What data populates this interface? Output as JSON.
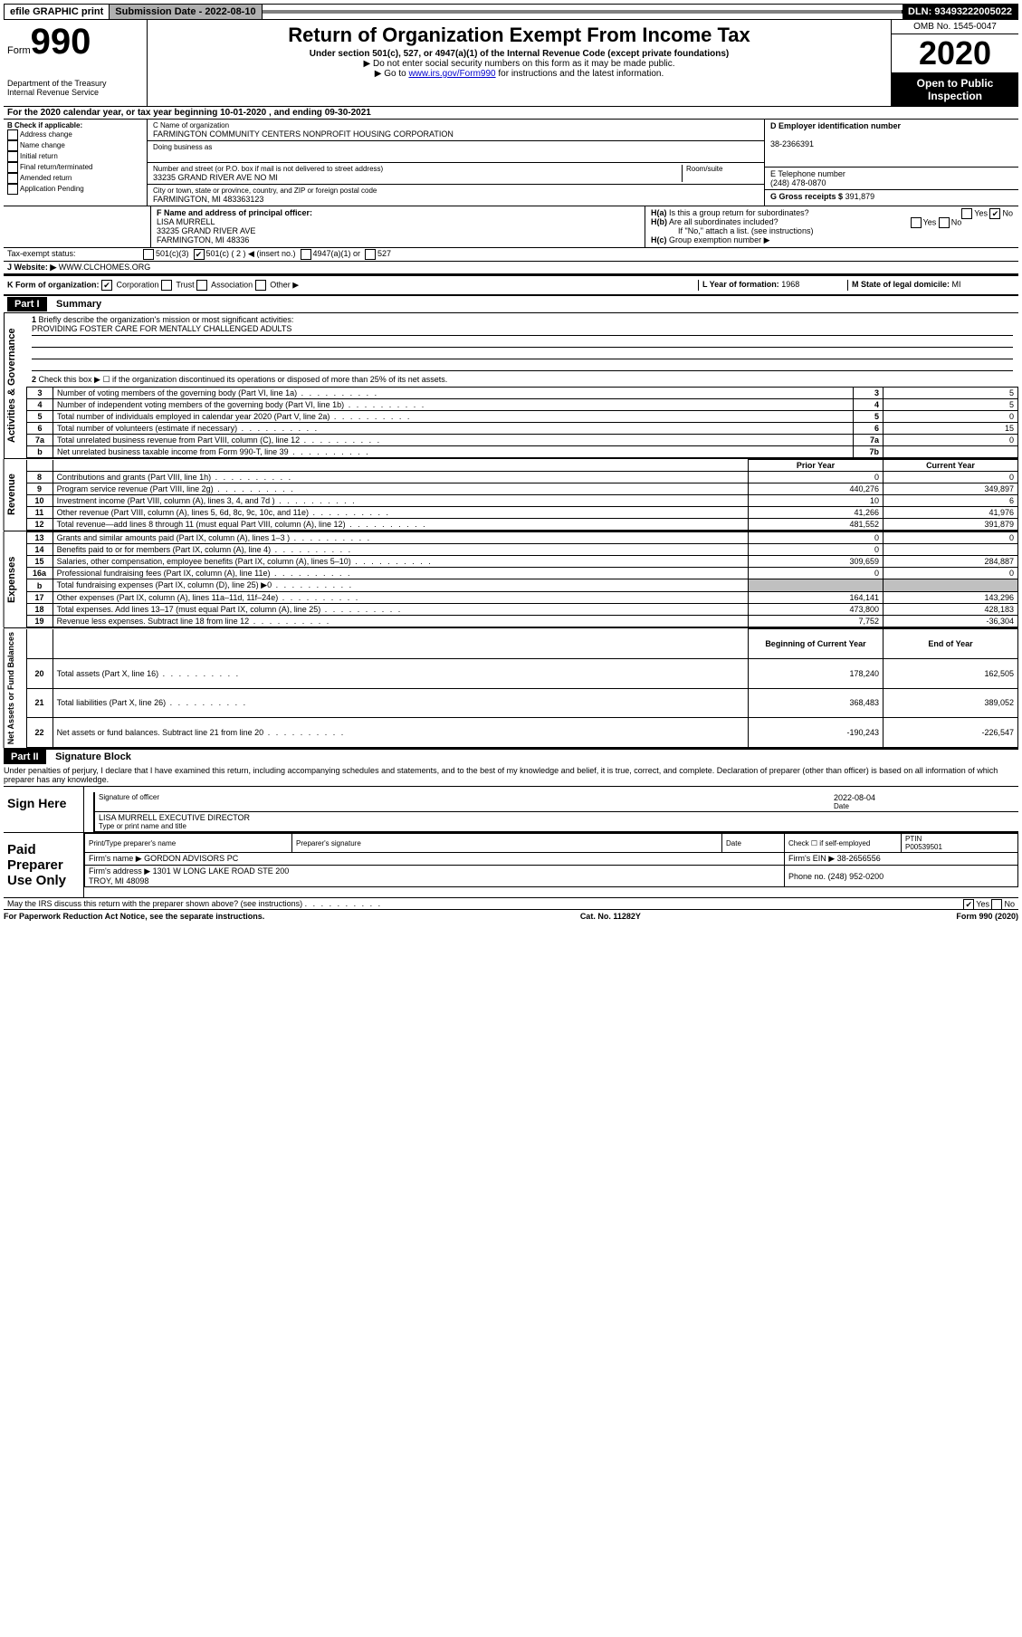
{
  "topbar": {
    "efile": "efile GRAPHIC print",
    "submission": "Submission Date - 2022-08-10",
    "dln": "DLN: 93493222005022"
  },
  "header": {
    "form_label": "Form",
    "form_number": "990",
    "dept": "Department of the Treasury\nInternal Revenue Service",
    "title": "Return of Organization Exempt From Income Tax",
    "subtitle": "Under section 501(c), 527, or 4947(a)(1) of the Internal Revenue Code (except private foundations)",
    "note1": "▶ Do not enter social security numbers on this form as it may be made public.",
    "note2_pre": "▶ Go to ",
    "note2_link": "www.irs.gov/Form990",
    "note2_post": " for instructions and the latest information.",
    "omb": "OMB No. 1545-0047",
    "year": "2020",
    "inspection": "Open to Public Inspection"
  },
  "line_a": "For the 2020 calendar year, or tax year beginning 10-01-2020   , and ending 09-30-2021",
  "section_b": {
    "label": "B Check if applicable:",
    "address_change": "Address change",
    "name_change": "Name change",
    "initial_return": "Initial return",
    "final_return": "Final return/terminated",
    "amended": "Amended return",
    "pending": "Application Pending"
  },
  "section_c": {
    "name_label": "C Name of organization",
    "name": "FARMINGTON COMMUNITY CENTERS NONPROFIT HOUSING CORPORATION",
    "dba_label": "Doing business as",
    "street_label": "Number and street (or P.O. box if mail is not delivered to street address)",
    "room_label": "Room/suite",
    "street": "33235 GRAND RIVER AVE NO MI",
    "city_label": "City or town, state or province, country, and ZIP or foreign postal code",
    "city": "FARMINGTON, MI  483363123"
  },
  "section_d": {
    "label": "D Employer identification number",
    "value": "38-2366391"
  },
  "section_e": {
    "label": "E Telephone number",
    "value": "(248) 478-0870"
  },
  "section_g": {
    "label": "G Gross receipts $",
    "value": "391,879"
  },
  "section_f": {
    "label": "F Name and address of principal officer:",
    "name": "LISA MURRELL",
    "addr1": "33235 GRAND RIVER AVE",
    "addr2": "FARMINGTON, MI  48336"
  },
  "section_h": {
    "ha": "Is this a group return for subordinates?",
    "hb": "Are all subordinates included?",
    "hb_note": "If \"No,\" attach a list. (see instructions)",
    "hc": "Group exemption number ▶",
    "yes": "Yes",
    "no": "No"
  },
  "section_i": {
    "label": "Tax-exempt status:",
    "c3": "501(c)(3)",
    "c": "501(c) ( 2 ) ◀ (insert no.)",
    "a1": "4947(a)(1) or",
    "527": "527"
  },
  "section_j": {
    "label": "J   Website: ▶",
    "value": "WWW.CLCHOMES.ORG"
  },
  "section_k": {
    "label": "K Form of organization:",
    "corp": "Corporation",
    "trust": "Trust",
    "assoc": "Association",
    "other": "Other ▶"
  },
  "section_l": {
    "label": "L Year of formation:",
    "value": "1968"
  },
  "section_m": {
    "label": "M State of legal domicile:",
    "value": "MI"
  },
  "part1": {
    "header": "Part I",
    "title": "Summary",
    "line1_label": "Briefly describe the organization's mission or most significant activities:",
    "line1_value": "PROVIDING FOSTER CARE FOR MENTALLY CHALLENGED ADULTS",
    "line2": "Check this box ▶ ☐ if the organization discontinued its operations or disposed of more than 25% of its net assets.",
    "gov_label": "Activities & Governance",
    "rev_label": "Revenue",
    "exp_label": "Expenses",
    "net_label": "Net Assets or Fund Balances",
    "prior": "Prior Year",
    "current": "Current Year",
    "begin": "Beginning of Current Year",
    "end": "End of Year",
    "rows_gov": [
      {
        "n": "3",
        "t": "Number of voting members of the governing body (Part VI, line 1a)",
        "b": "3",
        "v": "5"
      },
      {
        "n": "4",
        "t": "Number of independent voting members of the governing body (Part VI, line 1b)",
        "b": "4",
        "v": "5"
      },
      {
        "n": "5",
        "t": "Total number of individuals employed in calendar year 2020 (Part V, line 2a)",
        "b": "5",
        "v": "0"
      },
      {
        "n": "6",
        "t": "Total number of volunteers (estimate if necessary)",
        "b": "6",
        "v": "15"
      },
      {
        "n": "7a",
        "t": "Total unrelated business revenue from Part VIII, column (C), line 12",
        "b": "7a",
        "v": "0"
      },
      {
        "n": "b",
        "t": "Net unrelated business taxable income from Form 990-T, line 39",
        "b": "7b",
        "v": ""
      }
    ],
    "rows_rev": [
      {
        "n": "8",
        "t": "Contributions and grants (Part VIII, line 1h)",
        "p": "0",
        "c": "0"
      },
      {
        "n": "9",
        "t": "Program service revenue (Part VIII, line 2g)",
        "p": "440,276",
        "c": "349,897"
      },
      {
        "n": "10",
        "t": "Investment income (Part VIII, column (A), lines 3, 4, and 7d )",
        "p": "10",
        "c": "6"
      },
      {
        "n": "11",
        "t": "Other revenue (Part VIII, column (A), lines 5, 6d, 8c, 9c, 10c, and 11e)",
        "p": "41,266",
        "c": "41,976"
      },
      {
        "n": "12",
        "t": "Total revenue—add lines 8 through 11 (must equal Part VIII, column (A), line 12)",
        "p": "481,552",
        "c": "391,879"
      }
    ],
    "rows_exp": [
      {
        "n": "13",
        "t": "Grants and similar amounts paid (Part IX, column (A), lines 1–3 )",
        "p": "0",
        "c": "0"
      },
      {
        "n": "14",
        "t": "Benefits paid to or for members (Part IX, column (A), line 4)",
        "p": "0",
        "c": ""
      },
      {
        "n": "15",
        "t": "Salaries, other compensation, employee benefits (Part IX, column (A), lines 5–10)",
        "p": "309,659",
        "c": "284,887"
      },
      {
        "n": "16a",
        "t": "Professional fundraising fees (Part IX, column (A), line 11e)",
        "p": "0",
        "c": "0"
      },
      {
        "n": "b",
        "t": "Total fundraising expenses (Part IX, column (D), line 25) ▶0",
        "p": "",
        "c": ""
      },
      {
        "n": "17",
        "t": "Other expenses (Part IX, column (A), lines 11a–11d, 11f–24e)",
        "p": "164,141",
        "c": "143,296"
      },
      {
        "n": "18",
        "t": "Total expenses. Add lines 13–17 (must equal Part IX, column (A), line 25)",
        "p": "473,800",
        "c": "428,183"
      },
      {
        "n": "19",
        "t": "Revenue less expenses. Subtract line 18 from line 12",
        "p": "7,752",
        "c": "-36,304"
      }
    ],
    "rows_net": [
      {
        "n": "20",
        "t": "Total assets (Part X, line 16)",
        "p": "178,240",
        "c": "162,505"
      },
      {
        "n": "21",
        "t": "Total liabilities (Part X, line 26)",
        "p": "368,483",
        "c": "389,052"
      },
      {
        "n": "22",
        "t": "Net assets or fund balances. Subtract line 21 from line 20",
        "p": "-190,243",
        "c": "-226,547"
      }
    ]
  },
  "part2": {
    "header": "Part II",
    "title": "Signature Block",
    "penalty": "Under penalties of perjury, I declare that I have examined this return, including accompanying schedules and statements, and to the best of my knowledge and belief, it is true, correct, and complete. Declaration of preparer (other than officer) is based on all information of which preparer has any knowledge.",
    "sign_here": "Sign Here",
    "sig_officer": "Signature of officer",
    "date": "Date",
    "sig_date": "2022-08-04",
    "officer_name": "LISA MURRELL  EXECUTIVE DIRECTOR",
    "type_name": "Type or print name and title",
    "paid": "Paid Preparer Use Only",
    "print_name": "Print/Type preparer's name",
    "prep_sig": "Preparer's signature",
    "check_self": "Check ☐ if self-employed",
    "ptin_label": "PTIN",
    "ptin": "P00539501",
    "firm_name_label": "Firm's name    ▶",
    "firm_name": "GORDON ADVISORS PC",
    "firm_ein_label": "Firm's EIN ▶",
    "firm_ein": "38-2656556",
    "firm_addr_label": "Firm's address ▶",
    "firm_addr": "1301 W LONG LAKE ROAD STE 200\nTROY, MI  48098",
    "phone_label": "Phone no.",
    "phone": "(248) 952-0200",
    "discuss": "May the IRS discuss this return with the preparer shown above? (see instructions)"
  },
  "footer": {
    "pra": "For Paperwork Reduction Act Notice, see the separate instructions.",
    "cat": "Cat. No. 11282Y",
    "form": "Form 990 (2020)"
  }
}
